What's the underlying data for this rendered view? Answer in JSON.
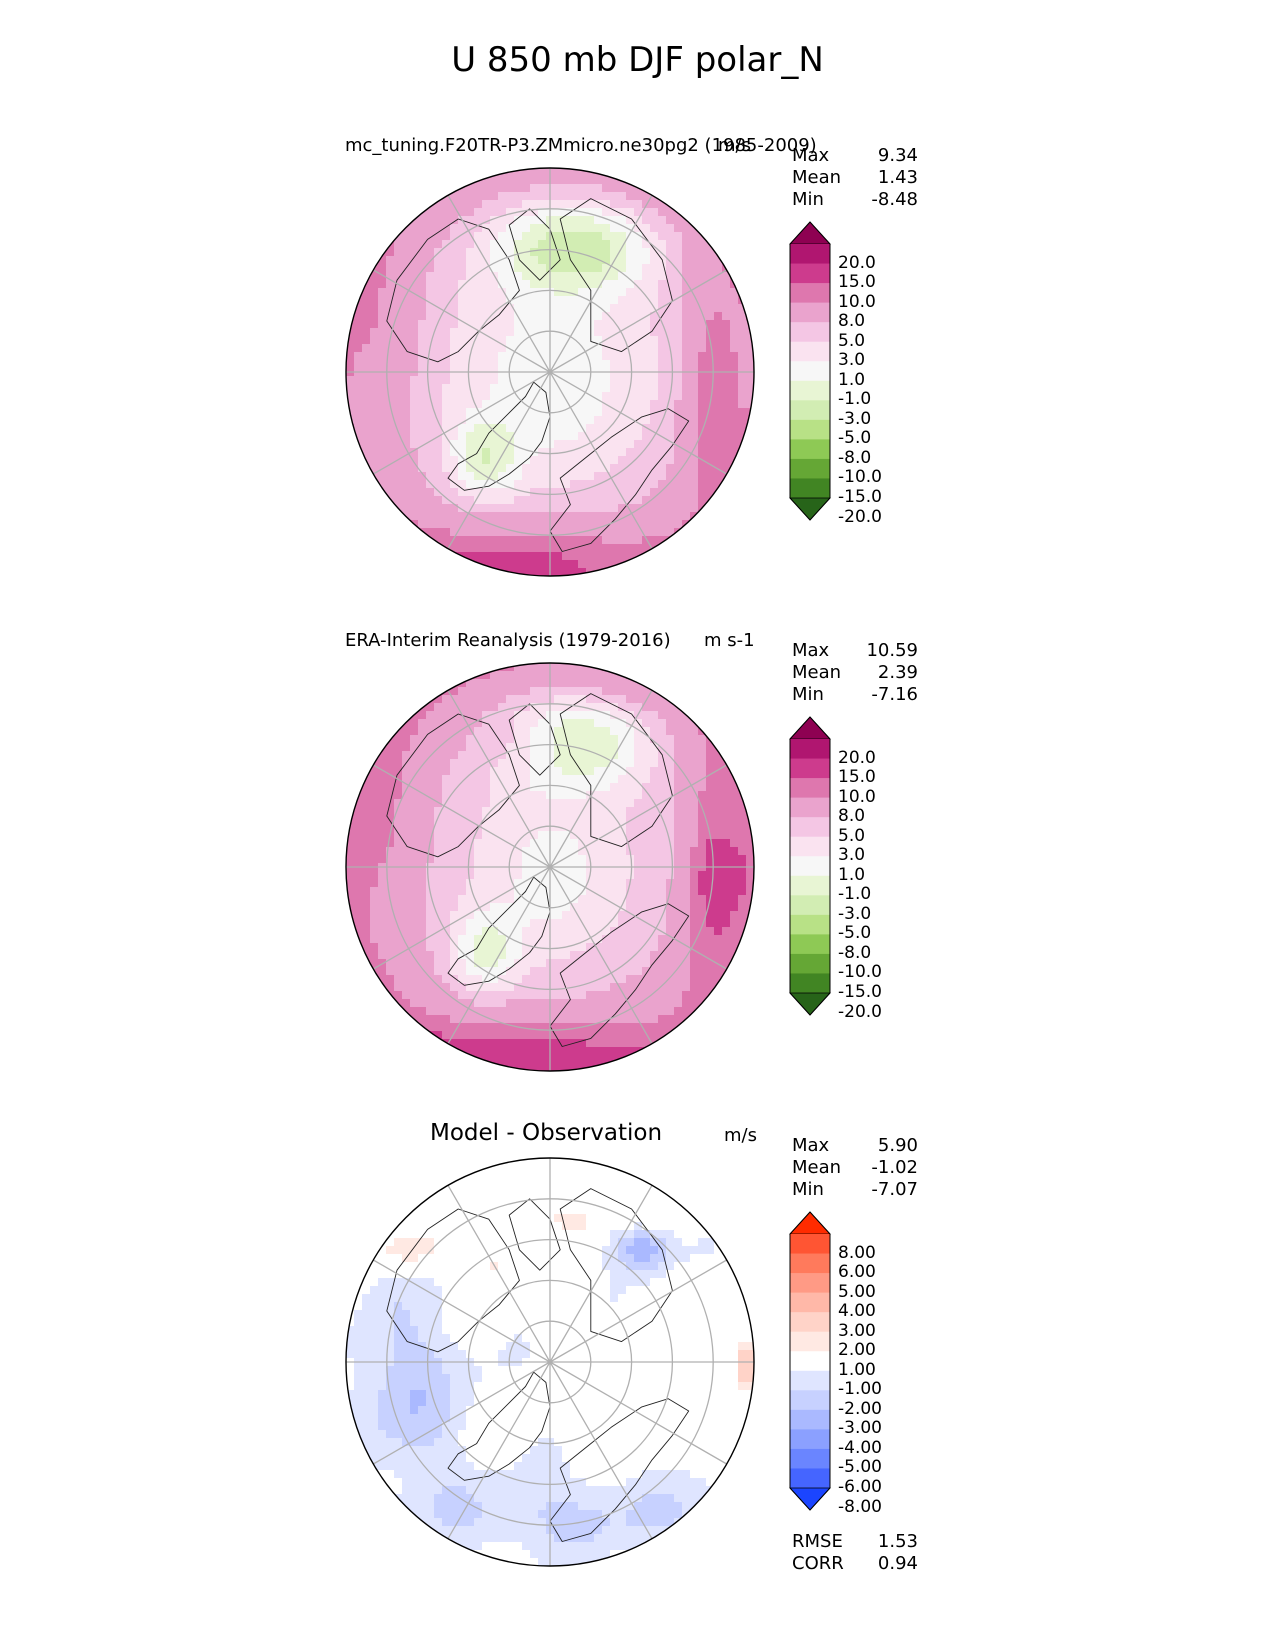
{
  "figure": {
    "title": "U 850 mb DJF polar_N"
  },
  "chart_data": [
    {
      "type": "heatmap",
      "projection": "north polar stereographic",
      "title_left": "mc_tuning.F20TR-P3.ZMmicro.ne30pg2 (1985-2009)",
      "title_right": "m/s",
      "stats": {
        "max_label": "Max",
        "max": "9.34",
        "mean_label": "Mean",
        "mean": "1.43",
        "min_label": "Min",
        "min": "-8.48"
      },
      "colorbar": {
        "labels": [
          "20.0",
          "15.0",
          "10.0",
          "8.0",
          "5.0",
          "3.0",
          "1.0",
          "-1.0",
          "-3.0",
          "-5.0",
          "-8.0",
          "-10.0",
          "-15.0",
          "-20.0"
        ],
        "colors": [
          "#8e0152",
          "#b01670",
          "#cd3b8d",
          "#de77ae",
          "#eaa3cd",
          "#f4c6e4",
          "#fae3f0",
          "#f7f7f7",
          "#e8f5d4",
          "#d2edb3",
          "#b8e186",
          "#8ec955",
          "#65a735",
          "#418523",
          "#276419"
        ]
      }
    },
    {
      "type": "heatmap",
      "projection": "north polar stereographic",
      "title_left": "ERA-Interim Reanalysis (1979-2016)",
      "title_right": "m s-1",
      "stats": {
        "max_label": "Max",
        "max": "10.59",
        "mean_label": "Mean",
        "mean": "2.39",
        "min_label": "Min",
        "min": "-7.16"
      },
      "colorbar": {
        "labels": [
          "20.0",
          "15.0",
          "10.0",
          "8.0",
          "5.0",
          "3.0",
          "1.0",
          "-1.0",
          "-3.0",
          "-5.0",
          "-8.0",
          "-10.0",
          "-15.0",
          "-20.0"
        ],
        "colors": [
          "#8e0152",
          "#b01670",
          "#cd3b8d",
          "#de77ae",
          "#eaa3cd",
          "#f4c6e4",
          "#fae3f0",
          "#f7f7f7",
          "#e8f5d4",
          "#d2edb3",
          "#b8e186",
          "#8ec955",
          "#65a735",
          "#418523",
          "#276419"
        ]
      }
    },
    {
      "type": "heatmap",
      "projection": "north polar stereographic",
      "title_left": "Model - Observation",
      "title_right": "m/s",
      "stats": {
        "max_label": "Max",
        "max": "5.90",
        "mean_label": "Mean",
        "mean": "-1.02",
        "min_label": "Min",
        "min": "-7.07"
      },
      "metrics": {
        "rmse_label": "RMSE",
        "rmse": "1.53",
        "corr_label": "CORR",
        "corr": "0.94"
      },
      "colorbar": {
        "labels": [
          "8.00",
          "6.00",
          "5.00",
          "4.00",
          "3.00",
          "2.00",
          "1.00",
          "-1.00",
          "-2.00",
          "-3.00",
          "-4.00",
          "-5.00",
          "-6.00",
          "-8.00"
        ],
        "colors": [
          "#ff2b00",
          "#ff5533",
          "#ff7a5c",
          "#ff9a85",
          "#ffb8a8",
          "#ffd3c8",
          "#ffe9e3",
          "#ffffff",
          "#dfe5ff",
          "#c7d1ff",
          "#aab9ff",
          "#8ba0ff",
          "#6a85ff",
          "#4565ff",
          "#1b45ff"
        ]
      }
    }
  ]
}
